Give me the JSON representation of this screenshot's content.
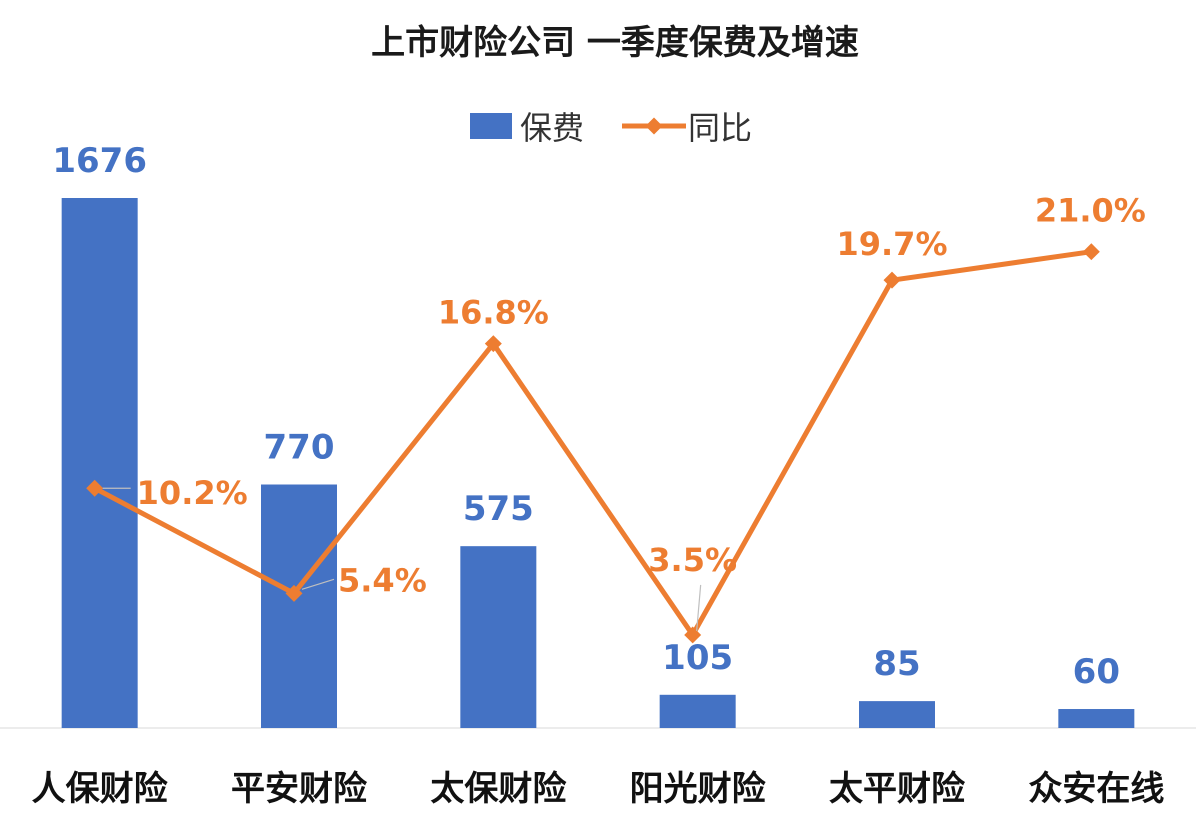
{
  "chart_data": {
    "type": "bar",
    "title": "上市财险公司  一季度保费及增速",
    "categories": [
      "人保财险",
      "平安财险",
      "太保财险",
      "阳光财险",
      "太平财险",
      "众安在线"
    ],
    "series": [
      {
        "name": "保费",
        "type": "bar",
        "values": [
          1676,
          770,
          575,
          105,
          85,
          60
        ],
        "color": "#4472C4"
      },
      {
        "name": "同比",
        "type": "line",
        "values": [
          10.2,
          5.4,
          16.8,
          3.5,
          19.7,
          21.0
        ],
        "labels": [
          "10.2%",
          "5.4%",
          "16.8%",
          "3.5%",
          "19.7%",
          "21.0%"
        ],
        "color": "#ED7D31"
      }
    ],
    "bar_labels": [
      "1676",
      "770",
      "575",
      "105",
      "85",
      "60"
    ],
    "legend": {
      "position": "top-center",
      "entries": [
        "保费",
        "同比"
      ]
    },
    "grid": false
  }
}
